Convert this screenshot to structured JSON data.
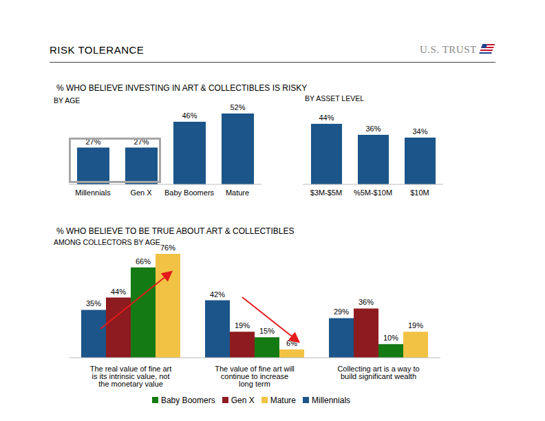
{
  "header": {
    "title": "RISK TOLERANCE",
    "brand": "U.S. TRUST"
  },
  "sections": [
    {
      "title": "% WHO BELIEVE INVESTING IN ART & COLLECTIBLES IS RISKY"
    },
    {
      "title": "% WHO BELIEVE TO BE TRUE ABOUT ART & COLLECTIBLES"
    }
  ],
  "chart_data": [
    {
      "type": "bar",
      "title": "BY AGE",
      "categories": [
        "Millennials",
        "Gen X",
        "Baby Boomers",
        "Mature"
      ],
      "values": [
        27,
        27,
        46,
        52
      ],
      "value_labels": [
        "27%",
        "27%",
        "46%",
        "52%"
      ],
      "color": "#1b5589",
      "data_labels": true,
      "tick_labels": "x"
    },
    {
      "type": "bar",
      "title": "BY ASSET LEVEL",
      "categories": [
        "$3M-$5M",
        "%5M-$10M",
        "$10M"
      ],
      "values": [
        44,
        36,
        34
      ],
      "value_labels": [
        "44%",
        "36%",
        "34%"
      ],
      "color": "#1b5589",
      "data_labels": true,
      "tick_labels": "x"
    },
    {
      "type": "bar",
      "title": "AMONG COLLECTORS BY AGE",
      "categories": [
        "The real value of fine art is its intrinsic value, not the monetary value",
        "The value of fine art will continue to increase long term",
        "Collecting art is a way to build significant wealth"
      ],
      "series": [
        {
          "name": "Millennials",
          "color": "#1b5589",
          "values": [
            35,
            42,
            29
          ],
          "value_labels": [
            "35%",
            "42%",
            "29%"
          ]
        },
        {
          "name": "Gen X",
          "color": "#8e1b1f",
          "values": [
            44,
            19,
            36
          ],
          "value_labels": [
            "44%",
            "19%",
            "36%"
          ]
        },
        {
          "name": "Baby Boomers",
          "color": "#147a14",
          "values": [
            66,
            15,
            10
          ],
          "value_labels": [
            "66%",
            "15%",
            "10%"
          ]
        },
        {
          "name": "Mature",
          "color": "#f2c244",
          "values": [
            76,
            6,
            19
          ],
          "value_labels": [
            "76%",
            "6%",
            "19%"
          ]
        }
      ],
      "data_labels": true,
      "tick_labels": "x",
      "legend": "bottom"
    }
  ]
}
